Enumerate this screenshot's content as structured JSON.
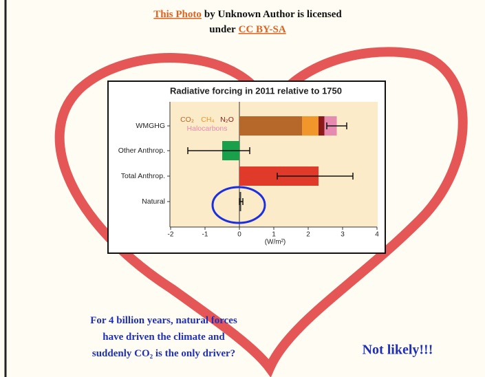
{
  "attribution": {
    "link": "This Photo",
    "text_1": "by Unknown Author is licensed",
    "text_2": "under",
    "license": "CC BY-SA"
  },
  "chart_data": {
    "type": "bar",
    "orientation": "horizontal",
    "stacked": true,
    "title": "Radiative forcing in 2011 relative to 1750",
    "x_label": "(W/m²)",
    "categories": [
      "WMGHG",
      "Other Anthrop.",
      "Total Anthrop.",
      "Natural"
    ],
    "series": [
      {
        "name": "CO₂",
        "color": "#b5682a",
        "values": [
          1.82,
          null,
          null,
          null
        ]
      },
      {
        "name": "CH₄",
        "color": "#f0962a",
        "values": [
          0.48,
          null,
          null,
          null
        ]
      },
      {
        "name": "N₂O",
        "color": "#8b1a1a",
        "values": [
          0.17,
          null,
          null,
          null
        ]
      },
      {
        "name": "Halocarbons",
        "color": "#e78ab0",
        "values": [
          0.36,
          null,
          null,
          null
        ]
      },
      {
        "color": "#1aa04a",
        "values": [
          null,
          -0.5,
          null,
          null
        ]
      },
      {
        "color": "#e03a2a",
        "values": [
          null,
          null,
          2.3,
          null
        ]
      },
      {
        "color": "#444444",
        "values": [
          null,
          null,
          null,
          0.05
        ]
      }
    ],
    "ranges": [
      [
        2.54,
        3.12
      ],
      [
        -1.5,
        0.3
      ],
      [
        1.1,
        3.3
      ],
      [
        0.0,
        0.1
      ]
    ],
    "xlim": [
      -2,
      4
    ],
    "xticks": [
      -2,
      -1,
      0,
      1,
      2,
      3,
      4
    ]
  },
  "caption": {
    "lines": [
      "For 4 billion years, natural forces",
      "have driven the climate and",
      "suddenly CO₂ is the only driver?"
    ]
  },
  "punchline": "Not likely!!!"
}
